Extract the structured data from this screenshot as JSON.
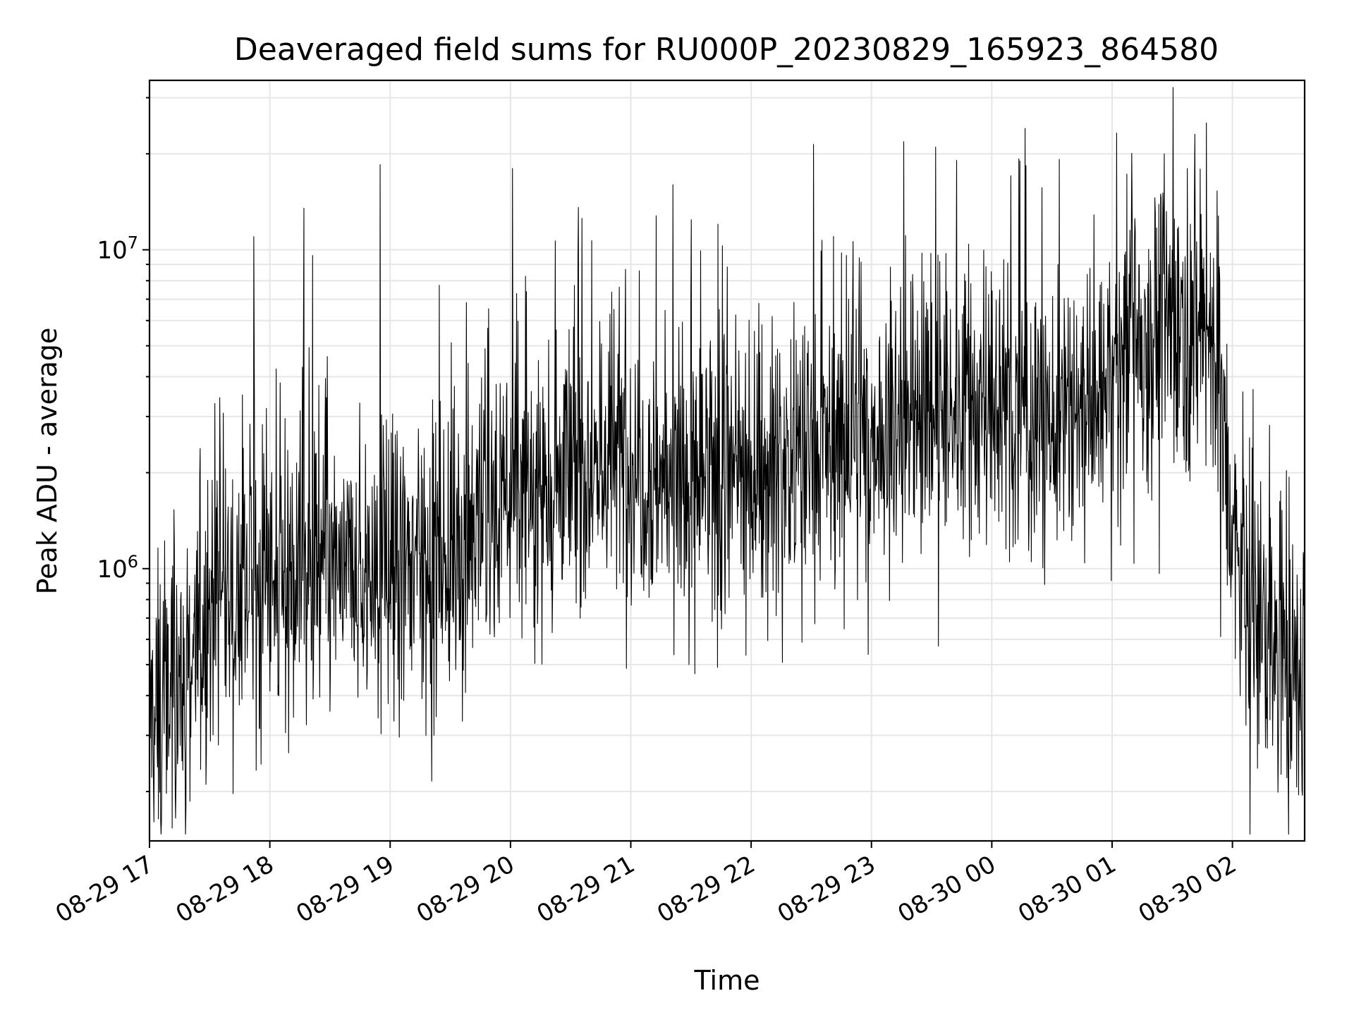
{
  "colors": {
    "background": "#ffffff",
    "line": "#000000",
    "grid": "#e6e6e6",
    "axes": "#000000"
  },
  "chart_data": {
    "type": "line",
    "title": "Deaveraged field sums for RU000P_20230829_165923_864580",
    "xlabel": "Time",
    "ylabel": "Peak ADU - average",
    "y_scale": "log",
    "ylim": [
      140000,
      34000000
    ],
    "xlim": [
      "2023-08-29 17:00",
      "2023-08-30 02:36"
    ],
    "grid": true,
    "legend": "none",
    "x_tick_labels": [
      "08-29 17",
      "08-29 18",
      "08-29 19",
      "08-29 20",
      "08-29 21",
      "08-29 22",
      "08-29 23",
      "08-30 00",
      "08-30 01",
      "08-30 02"
    ],
    "y_tick_labels": [
      {
        "value": 1000000,
        "base": "10",
        "exp": "6"
      },
      {
        "value": 10000000,
        "base": "10",
        "exp": "7"
      }
    ],
    "series": [
      {
        "x": [
          "2023-08-29 17:00",
          "2023-08-29 17:10",
          "2023-08-29 17:20",
          "2023-08-29 17:30",
          "2023-08-29 17:40",
          "2023-08-29 17:50",
          "2023-08-29 18:00",
          "2023-08-29 18:10",
          "2023-08-29 18:20",
          "2023-08-29 18:30",
          "2023-08-29 18:40",
          "2023-08-29 18:50",
          "2023-08-29 19:00",
          "2023-08-29 19:10",
          "2023-08-29 19:20",
          "2023-08-29 19:30",
          "2023-08-29 19:40",
          "2023-08-29 19:50",
          "2023-08-29 20:00",
          "2023-08-29 20:10",
          "2023-08-29 20:20",
          "2023-08-29 20:30",
          "2023-08-29 20:40",
          "2023-08-29 20:50",
          "2023-08-29 21:00",
          "2023-08-29 21:10",
          "2023-08-29 21:20",
          "2023-08-29 21:30",
          "2023-08-29 21:40",
          "2023-08-29 21:50",
          "2023-08-29 22:00",
          "2023-08-29 22:10",
          "2023-08-29 22:20",
          "2023-08-29 22:30",
          "2023-08-29 22:40",
          "2023-08-29 22:50",
          "2023-08-29 23:00",
          "2023-08-29 23:10",
          "2023-08-29 23:20",
          "2023-08-29 23:30",
          "2023-08-29 23:40",
          "2023-08-29 23:50",
          "2023-08-30 00:00",
          "2023-08-30 00:10",
          "2023-08-30 00:20",
          "2023-08-30 00:30",
          "2023-08-30 00:40",
          "2023-08-30 00:50",
          "2023-08-30 01:00",
          "2023-08-30 01:10",
          "2023-08-30 01:20",
          "2023-08-30 01:30",
          "2023-08-30 01:40",
          "2023-08-30 01:50",
          "2023-08-30 02:00",
          "2023-08-30 02:10",
          "2023-08-30 02:20",
          "2023-08-30 02:30",
          "2023-08-30 02:36"
        ],
        "y": [
          350000,
          380000,
          500000,
          700000,
          850000,
          900000,
          850000,
          950000,
          900000,
          1000000,
          900000,
          950000,
          950000,
          1000000,
          1050000,
          1150000,
          1300000,
          1400000,
          1700000,
          1800000,
          1900000,
          2000000,
          2100000,
          2200000,
          2300000,
          2000000,
          1900000,
          1800000,
          1700000,
          1900000,
          2000000,
          2100000,
          2200000,
          2300000,
          2400000,
          2500000,
          2600000,
          2700000,
          2800000,
          2900000,
          3000000,
          3100000,
          3200000,
          3300000,
          3000000,
          2900000,
          2800000,
          3200000,
          4000000,
          5000000,
          5500000,
          6000000,
          6000000,
          5500000,
          1200000,
          700000,
          550000,
          500000,
          450000
        ],
        "spike_max": [
          {
            "x": "2023-08-29 17:52",
            "y": 11000000
          },
          {
            "x": "2023-08-29 18:17",
            "y": 13500000
          },
          {
            "x": "2023-08-29 18:55",
            "y": 18500000
          },
          {
            "x": "2023-08-29 20:01",
            "y": 18000000
          },
          {
            "x": "2023-08-29 21:21",
            "y": 16000000
          },
          {
            "x": "2023-08-29 23:32",
            "y": 21000000
          },
          {
            "x": "2023-08-30 00:14",
            "y": 19000000
          },
          {
            "x": "2023-08-30 01:26",
            "y": 20000000
          },
          {
            "x": "2023-08-30 01:47",
            "y": 25000000
          }
        ],
        "spike_min": [
          {
            "x": "2023-08-29 17:06",
            "y": 165000
          },
          {
            "x": "2023-08-29 17:13",
            "y": 165000
          },
          {
            "x": "2023-08-29 18:54",
            "y": 340000
          },
          {
            "x": "2023-08-29 21:29",
            "y": 500000
          },
          {
            "x": "2023-08-30 02:33",
            "y": 195000
          }
        ]
      }
    ]
  }
}
